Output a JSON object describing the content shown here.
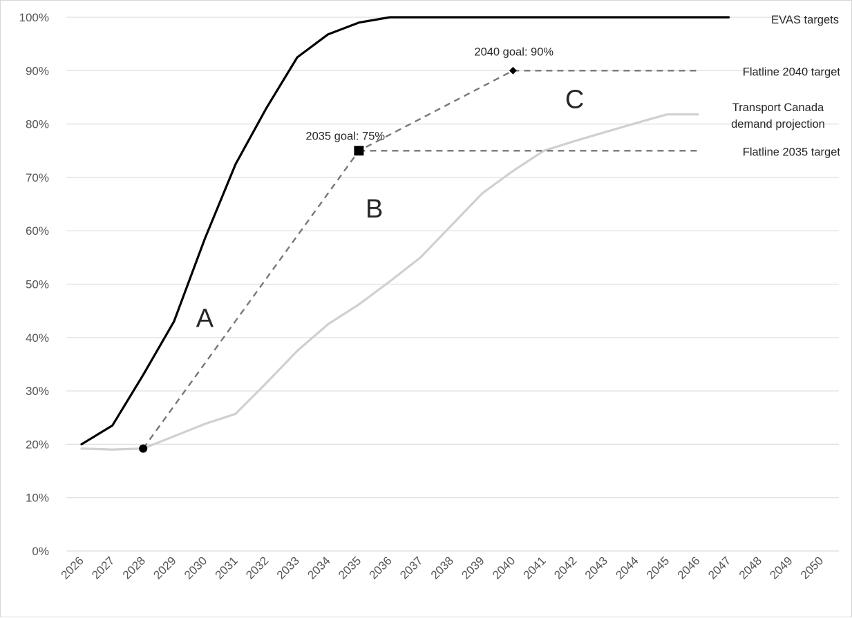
{
  "chart_data": {
    "type": "line",
    "title": "",
    "xlabel": "",
    "ylabel": "",
    "x": [
      2026,
      2027,
      2028,
      2029,
      2030,
      2031,
      2032,
      2033,
      2034,
      2035,
      2036,
      2037,
      2038,
      2039,
      2040,
      2041,
      2042,
      2043,
      2044,
      2045,
      2046,
      2047,
      2048,
      2049,
      2050
    ],
    "x_tick_labels": [
      "2026",
      "2027",
      "2028",
      "2029",
      "2030",
      "2031",
      "2032",
      "2033",
      "2034",
      "2035",
      "2036",
      "2037",
      "2038",
      "2039",
      "2040",
      "2041",
      "2042",
      "2043",
      "2044",
      "2045",
      "2046",
      "2047",
      "2048",
      "2049",
      "2050"
    ],
    "ylim": [
      0,
      100
    ],
    "y_ticks": [
      0,
      10,
      20,
      30,
      40,
      50,
      60,
      70,
      80,
      90,
      100
    ],
    "y_tick_labels": [
      "0%",
      "10%",
      "20%",
      "30%",
      "40%",
      "50%",
      "60%",
      "70%",
      "80%",
      "90%",
      "100%"
    ],
    "grid": "horizontal",
    "legend": "labels at right end of lines",
    "series": [
      {
        "name": "EVAS targets",
        "label_lines": [
          "EVAS targets"
        ],
        "style": "solid",
        "color": "#000000",
        "points": [
          [
            2026,
            20
          ],
          [
            2027,
            23.5
          ],
          [
            2028,
            33
          ],
          [
            2029,
            43
          ],
          [
            2030,
            58.5
          ],
          [
            2031,
            72.5
          ],
          [
            2032,
            83
          ],
          [
            2033,
            92.5
          ],
          [
            2034,
            96.8
          ],
          [
            2035,
            99
          ],
          [
            2036,
            100
          ],
          [
            2037,
            100
          ],
          [
            2038,
            100
          ],
          [
            2039,
            100
          ],
          [
            2040,
            100
          ],
          [
            2041,
            100
          ],
          [
            2042,
            100
          ],
          [
            2043,
            100
          ],
          [
            2044,
            100
          ],
          [
            2045,
            100
          ],
          [
            2046,
            100
          ],
          [
            2047,
            100
          ]
        ]
      },
      {
        "name": "Transport Canada demand projection",
        "label_lines": [
          "Transport Canada",
          "demand projection"
        ],
        "style": "solid",
        "color": "#d0d0d0",
        "points": [
          [
            2026,
            19.2
          ],
          [
            2027,
            19
          ],
          [
            2028,
            19.2
          ],
          [
            2029,
            21.5
          ],
          [
            2030,
            23.8
          ],
          [
            2031,
            25.7
          ],
          [
            2032,
            31.5
          ],
          [
            2033,
            37.5
          ],
          [
            2034,
            42.5
          ],
          [
            2035,
            46.2
          ],
          [
            2036,
            50.5
          ],
          [
            2037,
            55
          ],
          [
            2038,
            61
          ],
          [
            2039,
            67
          ],
          [
            2040,
            71.2
          ],
          [
            2041,
            75
          ],
          [
            2042,
            76.8
          ],
          [
            2043,
            78.5
          ],
          [
            2044,
            80.2
          ],
          [
            2045,
            81.8
          ],
          [
            2046,
            81.8
          ]
        ]
      },
      {
        "name": "",
        "label_lines": [],
        "style": "dashed",
        "color": "#777777",
        "points": [
          [
            2028,
            19.2
          ],
          [
            2035,
            75
          ],
          [
            2040,
            90
          ]
        ]
      },
      {
        "name": "Flatline 2035 target",
        "label_lines": [
          "Flatline 2035 target"
        ],
        "style": "dashed",
        "color": "#777777",
        "points": [
          [
            2035,
            75
          ],
          [
            2046,
            75
          ]
        ]
      },
      {
        "name": "Flatline 2040 target",
        "label_lines": [
          "Flatline 2040 target"
        ],
        "style": "dashed",
        "color": "#777777",
        "points": [
          [
            2040,
            90
          ],
          [
            2046,
            90
          ]
        ]
      }
    ],
    "markers": [
      {
        "x": 2028,
        "y": 19.2,
        "shape": "circle"
      },
      {
        "x": 2035,
        "y": 75,
        "shape": "square"
      },
      {
        "x": 2040,
        "y": 90,
        "shape": "diamond"
      }
    ],
    "annotations": [
      {
        "text": "2035 goal: 75%",
        "x": 2035,
        "y": 75
      },
      {
        "text": "2040 goal: 90%",
        "x": 2040,
        "y": 90
      }
    ],
    "region_labels": [
      {
        "text": "A",
        "x": 2030,
        "y": 42
      },
      {
        "text": "B",
        "x": 2035.5,
        "y": 62.5
      },
      {
        "text": "C",
        "x": 2042,
        "y": 83
      }
    ]
  }
}
